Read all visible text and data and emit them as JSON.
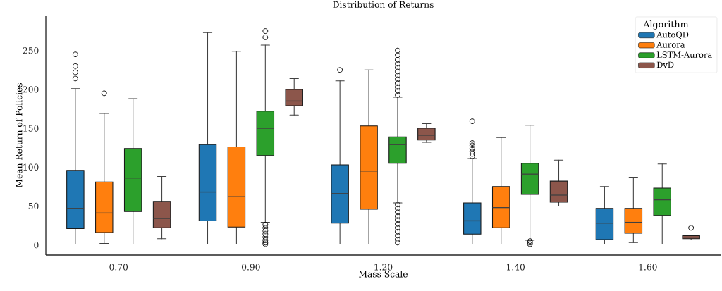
{
  "chart_data": {
    "type": "box",
    "title": "Distribution of Returns",
    "xlabel": "Mass Scale",
    "ylabel": "Mean Return of Policies",
    "legend_title": "Algorithm",
    "legend": "top right",
    "categories": [
      "0.70",
      "0.90",
      "1.20",
      "1.40",
      "1.60"
    ],
    "ylim": [
      -13,
      295
    ],
    "yticks": [
      0,
      50,
      100,
      150,
      200,
      250
    ],
    "series": [
      {
        "name": "AutoQD",
        "color": "#1f77b4",
        "boxes": [
          {
            "low": 1,
            "q1": 21,
            "median": 47,
            "q3": 96,
            "high": 201,
            "outliers": [
              214,
              222,
              230,
              245
            ]
          },
          {
            "low": 1,
            "q1": 31,
            "median": 68,
            "q3": 129,
            "high": 273
          },
          {
            "low": 1,
            "q1": 28,
            "median": 66,
            "q3": 103,
            "high": 211,
            "outliers": [
              225
            ]
          },
          {
            "low": 1,
            "q1": 14,
            "median": 31,
            "q3": 54,
            "high": 111,
            "outliers": [
              114,
              117,
              120,
              124,
              128,
              131,
              159
            ]
          },
          {
            "low": 1,
            "q1": 7,
            "median": 28,
            "q3": 47,
            "high": 75
          }
        ]
      },
      {
        "name": "Aurora",
        "color": "#ff7f0e",
        "boxes": [
          {
            "low": 2,
            "q1": 16,
            "median": 41,
            "q3": 81,
            "high": 169,
            "outliers": [
              195
            ]
          },
          {
            "low": 1,
            "q1": 23,
            "median": 62,
            "q3": 126,
            "high": 249
          },
          {
            "low": 1,
            "q1": 46,
            "median": 95,
            "q3": 153,
            "high": 225
          },
          {
            "low": 1,
            "q1": 22,
            "median": 48,
            "q3": 75,
            "high": 138
          },
          {
            "low": 3,
            "q1": 15,
            "median": 29,
            "q3": 47,
            "high": 87
          }
        ]
      },
      {
        "name": "LSTM-Aurora",
        "color": "#2ca02c",
        "boxes": [
          {
            "low": 1,
            "q1": 43,
            "median": 86,
            "q3": 124,
            "high": 188
          },
          {
            "low": 29,
            "q1": 115,
            "median": 150,
            "q3": 172,
            "high": 257,
            "outliers": [
              1,
              3,
              6,
              10,
              14,
              18,
              22,
              26,
              267,
              275
            ]
          },
          {
            "low": 54,
            "q1": 105,
            "median": 129,
            "q3": 139,
            "high": 190,
            "outliers": [
              3,
              7,
              12,
              17,
              22,
              27,
              32,
              37,
              42,
              47,
              52,
              193,
              198,
              203,
              208,
              213,
              218,
              223,
              228,
              233,
              238,
              244,
              250
            ]
          },
          {
            "low": 6,
            "q1": 65,
            "median": 91,
            "q3": 105,
            "high": 154,
            "outliers": [
              1,
              3,
              5
            ]
          },
          {
            "low": 1,
            "q1": 38,
            "median": 58,
            "q3": 73,
            "high": 104
          }
        ]
      },
      {
        "name": "DvD",
        "color": "#8c564b",
        "boxes": [
          {
            "low": 8,
            "q1": 22,
            "median": 34,
            "q3": 56,
            "high": 88
          },
          {
            "low": 167,
            "q1": 179,
            "median": 185,
            "q3": 200,
            "high": 214
          },
          {
            "low": 132,
            "q1": 135,
            "median": 141,
            "q3": 150,
            "high": 156
          },
          {
            "low": 50,
            "q1": 55,
            "median": 64,
            "q3": 82,
            "high": 109
          },
          {
            "low": 6.5,
            "q1": 8,
            "median": 10,
            "q3": 12,
            "high": 12,
            "outliers": [
              22
            ]
          }
        ]
      }
    ]
  }
}
